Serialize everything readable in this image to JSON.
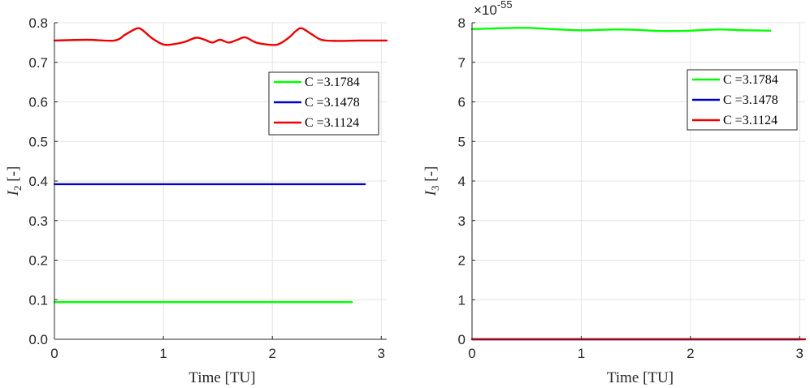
{
  "chart_data": [
    {
      "type": "line",
      "title": "",
      "xlabel": "Time [TU]",
      "ylabel_base": "I",
      "ylabel_sub": "2",
      "ylabel_suffix": " [-]",
      "xlim": [
        0,
        3.05
      ],
      "ylim": [
        0,
        0.8
      ],
      "xticks": [
        0,
        1,
        2,
        3
      ],
      "yticks": [
        0,
        0.1,
        0.2,
        0.3,
        0.4,
        0.5,
        0.6,
        0.7,
        0.8
      ],
      "grid": true,
      "legend_position": "top-right",
      "series": [
        {
          "name": "C =3.1784",
          "color": "#00ff00",
          "x": [
            0,
            0.5,
            1.0,
            1.5,
            2.0,
            2.5,
            2.73
          ],
          "y": [
            0.094,
            0.094,
            0.094,
            0.094,
            0.094,
            0.094,
            0.094
          ]
        },
        {
          "name": "C =3.1478",
          "color": "#0000cc",
          "x": [
            0,
            0.5,
            1.0,
            1.5,
            2.0,
            2.5,
            2.85
          ],
          "y": [
            0.392,
            0.392,
            0.392,
            0.392,
            0.392,
            0.392,
            0.392
          ]
        },
        {
          "name": "C =3.1124",
          "color": "#ee0000",
          "x": [
            0,
            0.3,
            0.55,
            0.65,
            0.75,
            0.8,
            0.9,
            1.0,
            1.1,
            1.2,
            1.3,
            1.38,
            1.45,
            1.52,
            1.6,
            1.68,
            1.75,
            1.85,
            1.95,
            2.05,
            2.15,
            2.22,
            2.27,
            2.35,
            2.45,
            2.6,
            2.8,
            3.05
          ],
          "y": [
            0.755,
            0.757,
            0.755,
            0.77,
            0.785,
            0.783,
            0.76,
            0.745,
            0.746,
            0.752,
            0.762,
            0.757,
            0.75,
            0.757,
            0.75,
            0.757,
            0.763,
            0.75,
            0.745,
            0.745,
            0.762,
            0.78,
            0.786,
            0.773,
            0.757,
            0.754,
            0.755,
            0.755
          ]
        }
      ]
    },
    {
      "type": "line",
      "title": "",
      "xlabel": "Time [TU]",
      "ylabel_base": "I",
      "ylabel_sub": "3",
      "ylabel_suffix": " [-]",
      "y_exponent_base": "×10",
      "y_exponent_power": "-55",
      "xlim": [
        0,
        3.05
      ],
      "ylim": [
        0,
        8
      ],
      "xticks": [
        0,
        1,
        2,
        3
      ],
      "yticks": [
        0,
        1,
        2,
        3,
        4,
        5,
        6,
        7,
        8
      ],
      "grid": true,
      "legend_position": "top-right",
      "series": [
        {
          "name": "C =3.1784",
          "color": "#00ff00",
          "x": [
            0,
            0.25,
            0.5,
            0.8,
            1.0,
            1.3,
            1.5,
            1.75,
            2.0,
            2.25,
            2.5,
            2.73
          ],
          "y": [
            7.84,
            7.86,
            7.87,
            7.83,
            7.81,
            7.83,
            7.82,
            7.79,
            7.8,
            7.83,
            7.81,
            7.8
          ]
        },
        {
          "name": "C =3.1478",
          "color": "#0000cc",
          "x": [
            0,
            1.0,
            2.0,
            3.0
          ],
          "y": [
            0,
            0,
            0,
            0
          ]
        },
        {
          "name": "C =3.1124",
          "color": "#ee0000",
          "x": [
            0,
            1.0,
            2.0,
            3.05
          ],
          "y": [
            0,
            0,
            0,
            0
          ]
        }
      ]
    }
  ]
}
